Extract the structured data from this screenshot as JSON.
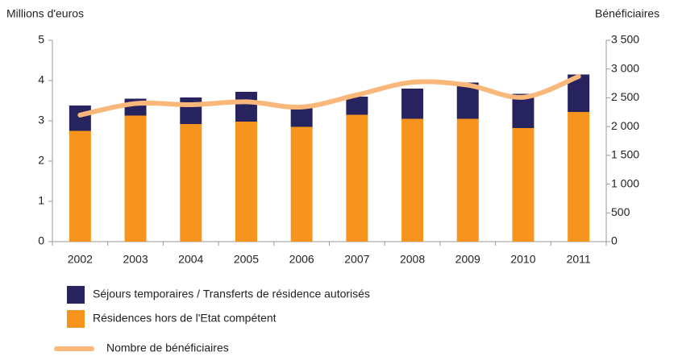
{
  "chart_data": {
    "type": "bar_line",
    "ylabel": "Millions d'euros",
    "y2label": "Bénéficiaires",
    "categories": [
      "2002",
      "2003",
      "2004",
      "2005",
      "2006",
      "2007",
      "2008",
      "2009",
      "2010",
      "2011"
    ],
    "stacked": true,
    "series": [
      {
        "name": "Séjours temporaires / Transferts de résidence autorisés",
        "color": "#27235e",
        "type": "bar",
        "values": [
          0.63,
          0.42,
          0.66,
          0.74,
          0.48,
          0.45,
          0.75,
          0.9,
          0.85,
          0.93
        ]
      },
      {
        "name": "Résidences hors de l'Etat compétent",
        "color": "#f7941d",
        "type": "bar",
        "values": [
          2.75,
          3.13,
          2.92,
          2.98,
          2.85,
          3.15,
          3.05,
          3.05,
          2.82,
          3.22
        ]
      },
      {
        "name": "Nombre de bénéficiaires",
        "color": "#f9b77a",
        "type": "line",
        "axis": "y2",
        "values": [
          2200,
          2400,
          2380,
          2430,
          2340,
          2550,
          2770,
          2720,
          2510,
          2870
        ]
      }
    ],
    "ylim": [
      0,
      5
    ],
    "yticks": [
      0,
      1,
      2,
      3,
      4,
      5
    ],
    "y2lim": [
      0,
      3500
    ],
    "y2ticks": [
      0,
      500,
      {
        "value": 1000,
        "label": "1 000"
      },
      {
        "value": 1500,
        "label": "1 500"
      },
      {
        "value": 2000,
        "label": "2 000"
      },
      {
        "value": 2500,
        "label": "2 500"
      },
      {
        "value": 3000,
        "label": "3 000"
      },
      {
        "value": 3500,
        "label": "3 500"
      }
    ],
    "grid": false
  }
}
